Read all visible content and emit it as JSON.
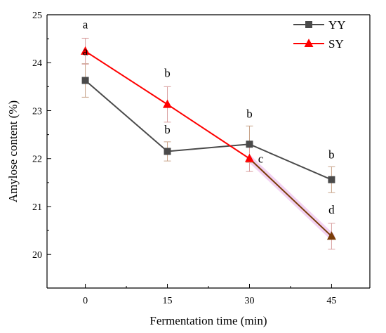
{
  "chart_data": {
    "type": "line",
    "title": "",
    "xlabel": "Fermentation time (min)",
    "ylabel": "Amylose content (%)",
    "x": [
      0,
      15,
      30,
      45
    ],
    "x_tick_labels": [
      "0",
      "15",
      "30",
      "45"
    ],
    "xlim": [
      -7,
      52
    ],
    "ylim": [
      19.3,
      25
    ],
    "y_ticks": [
      20,
      21,
      22,
      23,
      24,
      25
    ],
    "grid": false,
    "legend_position": "top-right",
    "series": [
      {
        "name": "YY",
        "color": "#4a4a4a",
        "error_color": "#c8a48a",
        "marker": "square",
        "values": [
          23.63,
          22.15,
          22.3,
          21.56
        ],
        "errors": [
          0.35,
          0.2,
          0.38,
          0.27
        ],
        "significance": [
          "a",
          "b",
          "b",
          "b"
        ]
      },
      {
        "name": "SY",
        "color": "#ff0000",
        "error_color": "#d9a0a0",
        "marker": "triangle",
        "values": [
          24.24,
          23.13,
          22.0,
          20.38
        ],
        "errors": [
          0.27,
          0.37,
          0.27,
          0.27
        ],
        "significance": [
          "a",
          "b",
          "c",
          "d"
        ]
      }
    ],
    "overlap_color": "#7a3d0a",
    "overlap_highlight": "#f0c8f0"
  }
}
